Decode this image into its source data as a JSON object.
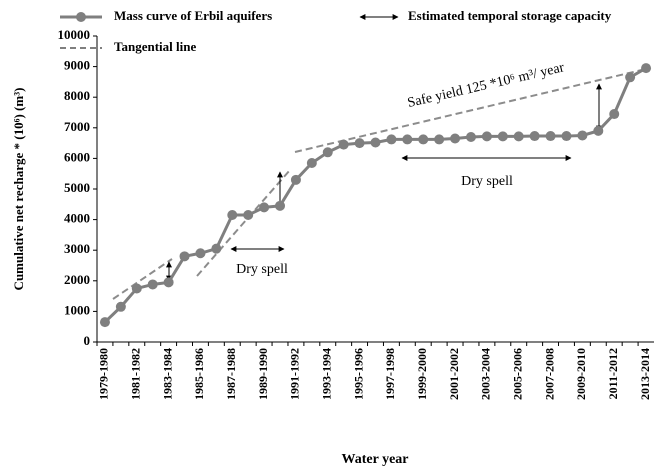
{
  "chart_data": {
    "type": "line",
    "x_label": "Water year",
    "y_label": "Cumulative  net recharge * (10⁶)  (m³)",
    "categories": [
      "1979-1980",
      null,
      "1981-1982",
      null,
      "1983-1984",
      null,
      "1985-1986",
      null,
      "1987-1988",
      null,
      "1989-1990",
      null,
      "1991-1992",
      null,
      "1993-1994",
      null,
      "1995-1996",
      null,
      "1997-1998",
      null,
      "1999-2000",
      null,
      "2001-2002",
      null,
      "2003-2004",
      null,
      "2005-2006",
      null,
      "2007-2008",
      null,
      "2009-2010",
      null,
      "2011-2012",
      null,
      "2013-2014"
    ],
    "series": [
      {
        "name": "Mass curve of Erbil aquifers",
        "color": "#7f7f7f",
        "values": [
          650,
          1150,
          1750,
          1880,
          1950,
          2800,
          2900,
          3050,
          4150,
          4150,
          4400,
          4450,
          5300,
          5850,
          6200,
          6450,
          6500,
          6520,
          6620,
          6620,
          6620,
          6620,
          6650,
          6700,
          6720,
          6720,
          6720,
          6730,
          6730,
          6730,
          6750,
          6900,
          7450,
          8650,
          8950
        ]
      }
    ],
    "legend_extra": [
      "Estimated temporal storage capacity",
      "Tangential line"
    ],
    "annotations": [
      "Dry spell",
      "Dry spell",
      "Safe yield 125 *10⁶ m³/ year"
    ],
    "ylim": [
      0,
      10000
    ],
    "yticks": [
      0,
      1000,
      2000,
      3000,
      4000,
      5000,
      6000,
      7000,
      8000,
      9000,
      10000
    ],
    "grid": false
  }
}
